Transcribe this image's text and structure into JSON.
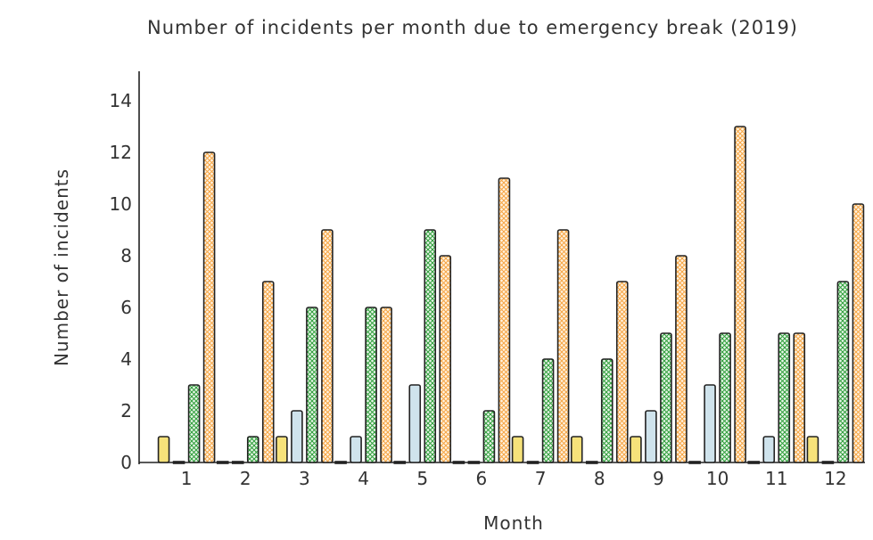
{
  "chart_data": {
    "type": "bar",
    "title": "Number of incidents per month due to emergency break (2019)",
    "xlabel": "Month",
    "ylabel": "Number of incidents",
    "categories": [
      "1",
      "2",
      "3",
      "4",
      "5",
      "6",
      "7",
      "8",
      "9",
      "10",
      "11",
      "12"
    ],
    "ylim": [
      0,
      15
    ],
    "yticks": [
      0,
      2,
      4,
      6,
      8,
      10,
      12,
      14
    ],
    "grid": false,
    "legend": "none",
    "series": [
      {
        "values": [
          1,
          0,
          1,
          0,
          0,
          0,
          1,
          1,
          1,
          0,
          0,
          1
        ],
        "color": "#f6e27a",
        "pattern": "solid"
      },
      {
        "values": [
          0,
          0,
          2,
          1,
          3,
          0,
          0,
          0,
          2,
          3,
          1,
          0
        ],
        "color": "#cfe3ec",
        "pattern": "solid"
      },
      {
        "values": [
          3,
          1,
          6,
          6,
          9,
          2,
          4,
          4,
          5,
          5,
          5,
          7
        ],
        "color": "#2e9e3a",
        "pattern": "crosshatch"
      },
      {
        "values": [
          12,
          7,
          9,
          6,
          8,
          11,
          9,
          7,
          8,
          13,
          5,
          10
        ],
        "color": "#f5a442",
        "pattern": "crosshatch"
      }
    ]
  }
}
